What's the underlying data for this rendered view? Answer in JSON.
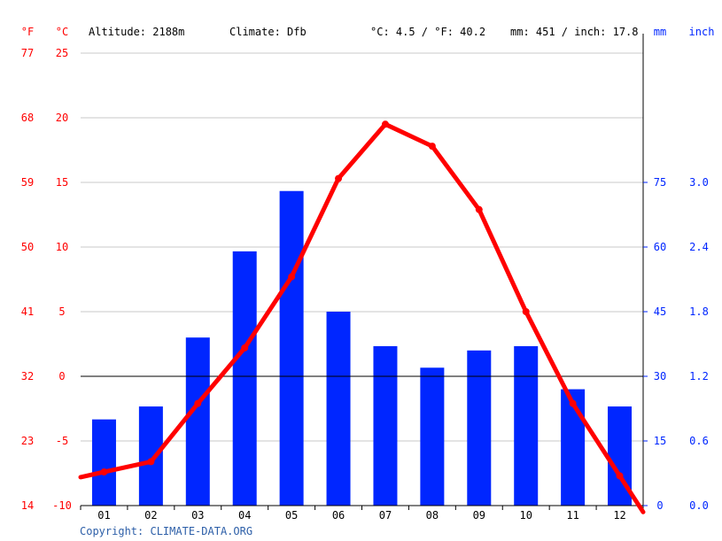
{
  "header": {
    "unit_f": "°F",
    "unit_c": "°C",
    "altitude": "Altitude: 2188m",
    "climate": "Climate: Dfb",
    "avg_temp": "°C: 4.5 / °F: 40.2",
    "precip": "mm: 451 / inch: 17.8",
    "unit_mm": "mm",
    "unit_inch": "inch"
  },
  "footer": {
    "copyright": "Copyright: CLIMATE-DATA.ORG"
  },
  "colors": {
    "temperature": "#ff0000",
    "precipitation": "#0026ff",
    "grid": "#c8c8c8",
    "text": "#000000",
    "copyright": "#2d5fa8"
  },
  "chart_data": {
    "type": "bar+line",
    "categories": [
      "01",
      "02",
      "03",
      "04",
      "05",
      "06",
      "07",
      "08",
      "09",
      "10",
      "11",
      "12"
    ],
    "series": [
      {
        "type": "bar",
        "unit": "mm",
        "values": [
          20,
          23,
          39,
          59,
          73,
          45,
          37,
          32,
          36,
          37,
          27,
          23
        ]
      },
      {
        "type": "line",
        "unit": "°C",
        "values": [
          -7.4,
          -6.6,
          -2.1,
          2.2,
          7.7,
          15.3,
          19.5,
          17.8,
          12.9,
          5.0,
          -2.1,
          -7.7
        ]
      }
    ],
    "axes": {
      "left_c": {
        "ticks": [
          "25",
          "20",
          "15",
          "10",
          "5",
          "0",
          "-5",
          "-10"
        ],
        "ylim": [
          -10,
          25
        ]
      },
      "left_f": {
        "ticks": [
          "77",
          "68",
          "59",
          "50",
          "41",
          "32",
          "23",
          "14"
        ]
      },
      "right_mm": {
        "ticks": [
          "75",
          "60",
          "45",
          "30",
          "15",
          "0"
        ],
        "ylim": [
          0,
          105
        ]
      },
      "right_inch": {
        "ticks": [
          "3.0",
          "2.4",
          "1.8",
          "1.2",
          "0.6",
          "0.0"
        ]
      }
    },
    "grid": true
  }
}
